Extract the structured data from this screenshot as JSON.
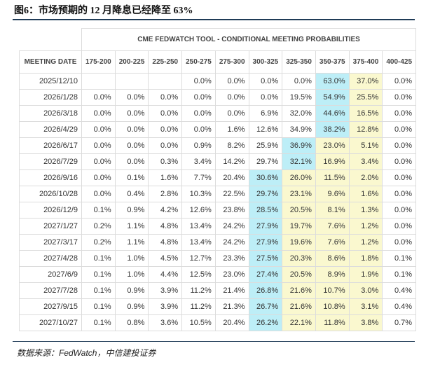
{
  "title": "图6：市场预期的 12 月降息已经降至 63%",
  "table": {
    "super_header": "CME FEDWATCH TOOL - CONDITIONAL MEETING PROBABILITIES",
    "date_header": "MEETING DATE",
    "columns": [
      "175-200",
      "200-225",
      "225-250",
      "250-275",
      "275-300",
      "300-325",
      "325-350",
      "350-375",
      "375-400",
      "400-425"
    ],
    "rows": [
      {
        "date": "2025/12/10",
        "cells": [
          null,
          null,
          null,
          "0.0%",
          "0.0%",
          "0.0%",
          "0.0%",
          "63.0%",
          "37.0%",
          "0.0%"
        ],
        "fills": [
          null,
          null,
          null,
          null,
          null,
          null,
          null,
          "#bdeef7",
          "#faf8cf",
          null
        ]
      },
      {
        "date": "2026/1/28",
        "cells": [
          "0.0%",
          "0.0%",
          "0.0%",
          "0.0%",
          "0.0%",
          "0.0%",
          "19.5%",
          "54.9%",
          "25.5%",
          "0.0%"
        ],
        "fills": [
          null,
          null,
          null,
          null,
          null,
          null,
          null,
          "#bdeef7",
          "#faf8cf",
          null
        ]
      },
      {
        "date": "2026/3/18",
        "cells": [
          "0.0%",
          "0.0%",
          "0.0%",
          "0.0%",
          "0.0%",
          "6.9%",
          "32.0%",
          "44.6%",
          "16.5%",
          "0.0%"
        ],
        "fills": [
          null,
          null,
          null,
          null,
          null,
          null,
          null,
          "#bdeef7",
          "#faf8cf",
          null
        ]
      },
      {
        "date": "2026/4/29",
        "cells": [
          "0.0%",
          "0.0%",
          "0.0%",
          "0.0%",
          "1.6%",
          "12.6%",
          "34.9%",
          "38.2%",
          "12.8%",
          "0.0%"
        ],
        "fills": [
          null,
          null,
          null,
          null,
          null,
          null,
          null,
          "#bdeef7",
          "#faf8cf",
          null
        ]
      },
      {
        "date": "2026/6/17",
        "cells": [
          "0.0%",
          "0.0%",
          "0.0%",
          "0.9%",
          "8.2%",
          "25.9%",
          "36.9%",
          "23.0%",
          "5.1%",
          "0.0%"
        ],
        "fills": [
          null,
          null,
          null,
          null,
          null,
          null,
          "#bdeef7",
          "#faf8cf",
          "#faf8cf",
          null
        ]
      },
      {
        "date": "2026/7/29",
        "cells": [
          "0.0%",
          "0.0%",
          "0.3%",
          "3.4%",
          "14.2%",
          "29.7%",
          "32.1%",
          "16.9%",
          "3.4%",
          "0.0%"
        ],
        "fills": [
          null,
          null,
          null,
          null,
          null,
          null,
          "#bdeef7",
          "#faf8cf",
          "#faf8cf",
          null
        ]
      },
      {
        "date": "2026/9/16",
        "cells": [
          "0.0%",
          "0.1%",
          "1.6%",
          "7.7%",
          "20.4%",
          "30.6%",
          "26.0%",
          "11.5%",
          "2.0%",
          "0.0%"
        ],
        "fills": [
          null,
          null,
          null,
          null,
          null,
          "#bdeef7",
          "#faf8cf",
          "#faf8cf",
          "#faf8cf",
          null
        ]
      },
      {
        "date": "2026/10/28",
        "cells": [
          "0.0%",
          "0.4%",
          "2.8%",
          "10.3%",
          "22.5%",
          "29.7%",
          "23.1%",
          "9.6%",
          "1.6%",
          "0.0%"
        ],
        "fills": [
          null,
          null,
          null,
          null,
          null,
          "#bdeef7",
          "#faf8cf",
          "#faf8cf",
          "#faf8cf",
          null
        ]
      },
      {
        "date": "2026/12/9",
        "cells": [
          "0.1%",
          "0.9%",
          "4.2%",
          "12.6%",
          "23.8%",
          "28.5%",
          "20.5%",
          "8.1%",
          "1.3%",
          "0.0%"
        ],
        "fills": [
          null,
          null,
          null,
          null,
          null,
          "#bdeef7",
          "#faf8cf",
          "#faf8cf",
          "#faf8cf",
          null
        ]
      },
      {
        "date": "2027/1/27",
        "cells": [
          "0.2%",
          "1.1%",
          "4.8%",
          "13.4%",
          "24.2%",
          "27.9%",
          "19.7%",
          "7.6%",
          "1.2%",
          "0.0%"
        ],
        "fills": [
          null,
          null,
          null,
          null,
          null,
          "#bdeef7",
          "#faf8cf",
          "#faf8cf",
          "#faf8cf",
          null
        ]
      },
      {
        "date": "2027/3/17",
        "cells": [
          "0.2%",
          "1.1%",
          "4.8%",
          "13.4%",
          "24.2%",
          "27.9%",
          "19.6%",
          "7.6%",
          "1.2%",
          "0.0%"
        ],
        "fills": [
          null,
          null,
          null,
          null,
          null,
          "#bdeef7",
          "#faf8cf",
          "#faf8cf",
          "#faf8cf",
          null
        ]
      },
      {
        "date": "2027/4/28",
        "cells": [
          "0.1%",
          "1.0%",
          "4.5%",
          "12.7%",
          "23.3%",
          "27.5%",
          "20.3%",
          "8.6%",
          "1.8%",
          "0.1%"
        ],
        "fills": [
          null,
          null,
          null,
          null,
          null,
          "#bdeef7",
          "#faf8cf",
          "#faf8cf",
          "#faf8cf",
          null
        ]
      },
      {
        "date": "2027/6/9",
        "cells": [
          "0.1%",
          "1.0%",
          "4.4%",
          "12.5%",
          "23.0%",
          "27.4%",
          "20.5%",
          "8.9%",
          "1.9%",
          "0.1%"
        ],
        "fills": [
          null,
          null,
          null,
          null,
          null,
          "#bdeef7",
          "#faf8cf",
          "#faf8cf",
          "#faf8cf",
          null
        ]
      },
      {
        "date": "2027/7/28",
        "cells": [
          "0.1%",
          "0.9%",
          "3.9%",
          "11.2%",
          "21.4%",
          "26.8%",
          "21.6%",
          "10.7%",
          "3.0%",
          "0.4%"
        ],
        "fills": [
          null,
          null,
          null,
          null,
          null,
          "#bdeef7",
          "#faf8cf",
          "#faf8cf",
          "#faf8cf",
          null
        ]
      },
      {
        "date": "2027/9/15",
        "cells": [
          "0.1%",
          "0.9%",
          "3.9%",
          "11.2%",
          "21.3%",
          "26.7%",
          "21.6%",
          "10.8%",
          "3.1%",
          "0.4%"
        ],
        "fills": [
          null,
          null,
          null,
          null,
          null,
          "#bdeef7",
          "#faf8cf",
          "#faf8cf",
          "#faf8cf",
          null
        ]
      },
      {
        "date": "2027/10/27",
        "cells": [
          "0.1%",
          "0.8%",
          "3.6%",
          "10.5%",
          "20.4%",
          "26.2%",
          "22.1%",
          "11.8%",
          "3.8%",
          "0.7%"
        ],
        "fills": [
          null,
          null,
          null,
          null,
          null,
          "#bdeef7",
          "#faf8cf",
          "#faf8cf",
          "#faf8cf",
          null
        ]
      }
    ]
  },
  "source": "数据来源：FedWatch，中信建投证券"
}
